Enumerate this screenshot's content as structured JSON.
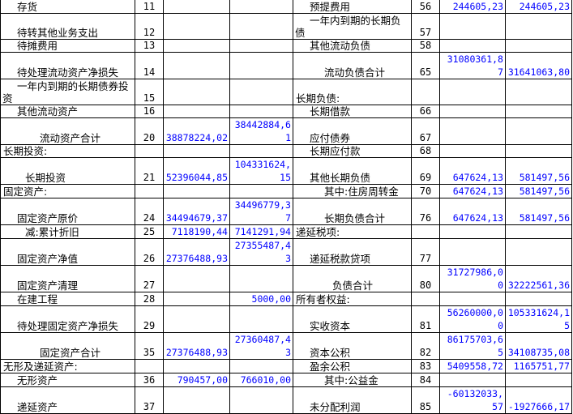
{
  "balance_sheet": {
    "rows": [
      {
        "left": {
          "label": "存货",
          "line": "11",
          "begin": "",
          "end": ""
        },
        "right": {
          "label": "预提费用",
          "line": "56",
          "begin": "244605,23",
          "end": "244605,23"
        }
      },
      {
        "left": {
          "label": "待转其他业务支出",
          "line": "12",
          "begin": "",
          "end": ""
        },
        "right": {
          "label": "一年内到期的长期负债",
          "line": "57",
          "begin": "",
          "end": ""
        }
      },
      {
        "left": {
          "label": "待摊费用",
          "line": "13",
          "begin": "",
          "end": ""
        },
        "right": {
          "label": "其他流动负债",
          "line": "58",
          "begin": "",
          "end": ""
        }
      },
      {
        "left": {
          "label": "待处理流动资产净损失",
          "line": "14",
          "begin": "",
          "end": ""
        },
        "right": {
          "label": "流动负债合计",
          "line": "65",
          "begin": "31080361,87",
          "end": "31641063,80"
        }
      },
      {
        "left": {
          "label": "一年内到期的长期债券投资",
          "line": "15",
          "begin": "",
          "end": ""
        },
        "right": {
          "label": "长期负债:",
          "line": "",
          "begin": "",
          "end": ""
        }
      },
      {
        "left": {
          "label": "其他流动资产",
          "line": "16",
          "begin": "",
          "end": ""
        },
        "right": {
          "label": "长期借款",
          "line": "66",
          "begin": "",
          "end": ""
        }
      },
      {
        "left": {
          "label": "流动资产合计",
          "line": "20",
          "begin": "38878224,02",
          "end": "38442884,61"
        },
        "right": {
          "label": "应付债券",
          "line": "67",
          "begin": "",
          "end": ""
        }
      },
      {
        "left": {
          "label": "长期投资:",
          "line": "",
          "begin": "",
          "end": ""
        },
        "right": {
          "label": "长期应付款",
          "line": "68",
          "begin": "",
          "end": ""
        }
      },
      {
        "left": {
          "label": "长期投资",
          "line": "21",
          "begin": "52396044,85",
          "end": "104331624,15"
        },
        "right": {
          "label": "其他长期负债",
          "line": "69",
          "begin": "647624,13",
          "end": "581497,56"
        }
      },
      {
        "left": {
          "label": "固定资产:",
          "line": "",
          "begin": "",
          "end": ""
        },
        "right": {
          "label": "其中:住房周转金",
          "line": "70",
          "begin": "647624,13",
          "end": "581497,56"
        }
      },
      {
        "left": {
          "label": "固定资产原价",
          "line": "24",
          "begin": "34494679,37",
          "end": "34496779,37"
        },
        "right": {
          "label": "长期负债合计",
          "line": "76",
          "begin": "647624,13",
          "end": "581497,56"
        }
      },
      {
        "left": {
          "label": "减:累计折旧",
          "line": "25",
          "begin": "7118190,44",
          "end": "7141291,94"
        },
        "right": {
          "label": "递延税项:",
          "line": "",
          "begin": "",
          "end": ""
        }
      },
      {
        "left": {
          "label": "固定资产净值",
          "line": "26",
          "begin": "27376488,93",
          "end": "27355487,43"
        },
        "right": {
          "label": "递延税款贷项",
          "line": "77",
          "begin": "",
          "end": ""
        }
      },
      {
        "left": {
          "label": "固定资产清理",
          "line": "27",
          "begin": "",
          "end": ""
        },
        "right": {
          "label": "负债合计",
          "line": "80",
          "begin": "31727986,00",
          "end": "32222561,36"
        }
      },
      {
        "left": {
          "label": "在建工程",
          "line": "28",
          "begin": "",
          "end": "5000,00"
        },
        "right": {
          "label": "所有者权益:",
          "line": "",
          "begin": "",
          "end": ""
        }
      },
      {
        "left": {
          "label": "待处理固定资产净损失",
          "line": "29",
          "begin": "",
          "end": ""
        },
        "right": {
          "label": "实收资本",
          "line": "81",
          "begin": "56260000,00",
          "end": "105331624,15"
        }
      },
      {
        "left": {
          "label": "固定资产合计",
          "line": "35",
          "begin": "27376488,93",
          "end": "27360487,43"
        },
        "right": {
          "label": "资本公积",
          "line": "82",
          "begin": "86175703,65",
          "end": "34108735,08"
        }
      },
      {
        "left": {
          "label": "无形及递延资产:",
          "line": "",
          "begin": "",
          "end": ""
        },
        "right": {
          "label": "盈余公积",
          "line": "83",
          "begin": "5409558,72",
          "end": "1165751,77"
        }
      },
      {
        "left": {
          "label": "无形资产",
          "line": "36",
          "begin": "790457,00",
          "end": "766010,00"
        },
        "right": {
          "label": "其中:公益金",
          "line": "84",
          "begin": "",
          "end": ""
        }
      },
      {
        "left": {
          "label": "递延资产",
          "line": "37",
          "begin": "",
          "end": ""
        },
        "right": {
          "label": "未分配利润",
          "line": "85",
          "begin": "-60132033,57",
          "end": "-1927666,17"
        }
      }
    ]
  },
  "colors": {
    "text": "#000000",
    "amount": "#0000ff",
    "grid": "#000000"
  }
}
